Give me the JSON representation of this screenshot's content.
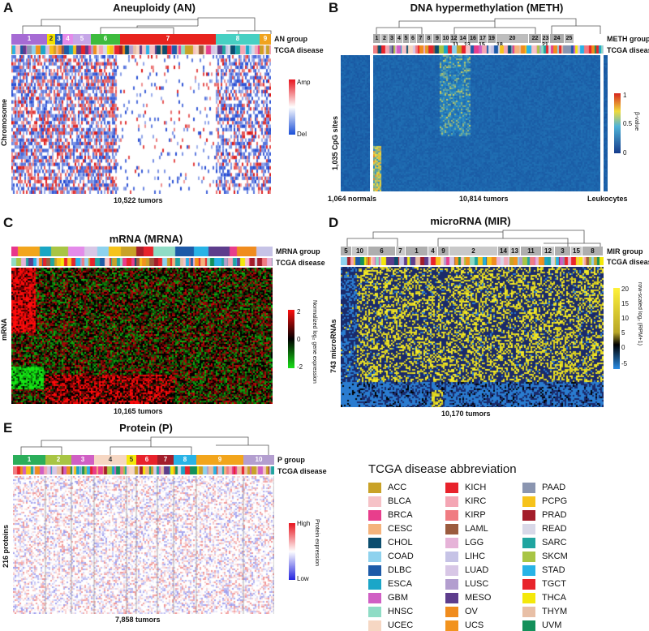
{
  "panels": {
    "a": {
      "letter": "A",
      "title": "Aneuploidy (AN)",
      "row_label": "Chromosome",
      "group_label": "AN group",
      "disease_label": "TCGA disease",
      "groups": [
        "1",
        "2",
        "3",
        "4",
        "5",
        "6",
        "7",
        "8",
        "9"
      ],
      "footer": "10,522 tumors",
      "legend_high": "Amp",
      "legend_low": "Del"
    },
    "b": {
      "letter": "B",
      "title": "DNA hypermethylation (METH)",
      "row_label": "1,035 CpG sites",
      "group_label": "METH group",
      "disease_label": "TCGA disease",
      "groups_top": [
        "1",
        "2",
        "3",
        "4",
        "5",
        "6",
        "7",
        "8",
        "9",
        "10",
        "12",
        "14",
        "16",
        "17",
        "19",
        "20",
        "22",
        "23",
        "24",
        "25"
      ],
      "groups_bottom": [
        "11",
        "13",
        "15",
        "18",
        "21"
      ],
      "legend_title": "β-value",
      "legend_ticks": [
        "1",
        "0.5",
        "0"
      ],
      "footer_left": "1,064 normals",
      "footer_mid": "10,814 tumors",
      "footer_right": "Leukocytes"
    },
    "c": {
      "letter": "C",
      "title": "mRNA (MRNA)",
      "row_label": "mRNA",
      "group_label": "MRNA group",
      "disease_label": "TCGA disease",
      "footer": "10,165 tumors",
      "legend_title": "Normalized log₂ gene expression",
      "legend_ticks": [
        "2",
        "0",
        "-2"
      ]
    },
    "d": {
      "letter": "D",
      "title": "microRNA (MIR)",
      "row_label": "743 microRNAs",
      "group_label": "MIR group",
      "disease_label": "TCGA disease",
      "groups": [
        "5",
        "10",
        "6",
        "7",
        "1",
        "4",
        "9",
        "2",
        "14",
        "13",
        "11",
        "12",
        "3",
        "15",
        "8"
      ],
      "footer": "10,170 tumors",
      "legend_title": "row-scaled log₂ (RPM+1)",
      "legend_ticks": [
        "20",
        "15",
        "10",
        "5",
        "0",
        "-5"
      ]
    },
    "e": {
      "letter": "E",
      "title": "Protein (P)",
      "row_label": "216 proteins",
      "group_label": "P group",
      "disease_label": "TCGA disease",
      "groups": [
        "1",
        "2",
        "3",
        "4",
        "5",
        "6",
        "7",
        "8",
        "9",
        "10"
      ],
      "footer": "7,858 tumors",
      "legend_title": "Protein expression",
      "legend_high": "High",
      "legend_low": "Low"
    }
  },
  "legend": {
    "title": "TCGA disease abbreviation",
    "items": [
      {
        "code": "ACC",
        "color": "#C9A227"
      },
      {
        "code": "KICH",
        "color": "#E8222B"
      },
      {
        "code": "PAAD",
        "color": "#8A95B0"
      },
      {
        "code": "BLCA",
        "color": "#F6C2C7"
      },
      {
        "code": "KIRC",
        "color": "#F4A6B4"
      },
      {
        "code": "PCPG",
        "color": "#F6C31B"
      },
      {
        "code": "BRCA",
        "color": "#E83E8C"
      },
      {
        "code": "KIRP",
        "color": "#F07C82"
      },
      {
        "code": "PRAD",
        "color": "#A31D2A"
      },
      {
        "code": "CESC",
        "color": "#F4B37C"
      },
      {
        "code": "LAML",
        "color": "#9B5B3E"
      },
      {
        "code": "READ",
        "color": "#D8D8E8"
      },
      {
        "code": "CHOL",
        "color": "#0B4D6E"
      },
      {
        "code": "LGG",
        "color": "#E6B3D8"
      },
      {
        "code": "SARC",
        "color": "#20A5A0"
      },
      {
        "code": "COAD",
        "color": "#8ED2EE"
      },
      {
        "code": "LIHC",
        "color": "#C6C3E6"
      },
      {
        "code": "SKCM",
        "color": "#A8C544"
      },
      {
        "code": "DLBC",
        "color": "#1D5AA8"
      },
      {
        "code": "LUAD",
        "color": "#D8C7E6"
      },
      {
        "code": "STAD",
        "color": "#28B3E6"
      },
      {
        "code": "ESCA",
        "color": "#1BA6C8"
      },
      {
        "code": "LUSC",
        "color": "#B39ECF"
      },
      {
        "code": "TGCT",
        "color": "#E8242B"
      },
      {
        "code": "GBM",
        "color": "#D05FC4"
      },
      {
        "code": "MESO",
        "color": "#5D3D8C"
      },
      {
        "code": "THCA",
        "color": "#F4E80A"
      },
      {
        "code": "HNSC",
        "color": "#8FDCC5"
      },
      {
        "code": "OV",
        "color": "#F08C1E"
      },
      {
        "code": "THYM",
        "color": "#E8BFA6"
      },
      {
        "code": "UCEC",
        "color": "#F6D7C3"
      },
      {
        "code": "UCS",
        "color": "#F2931E"
      },
      {
        "code": "UVM",
        "color": "#13905A"
      }
    ]
  }
}
